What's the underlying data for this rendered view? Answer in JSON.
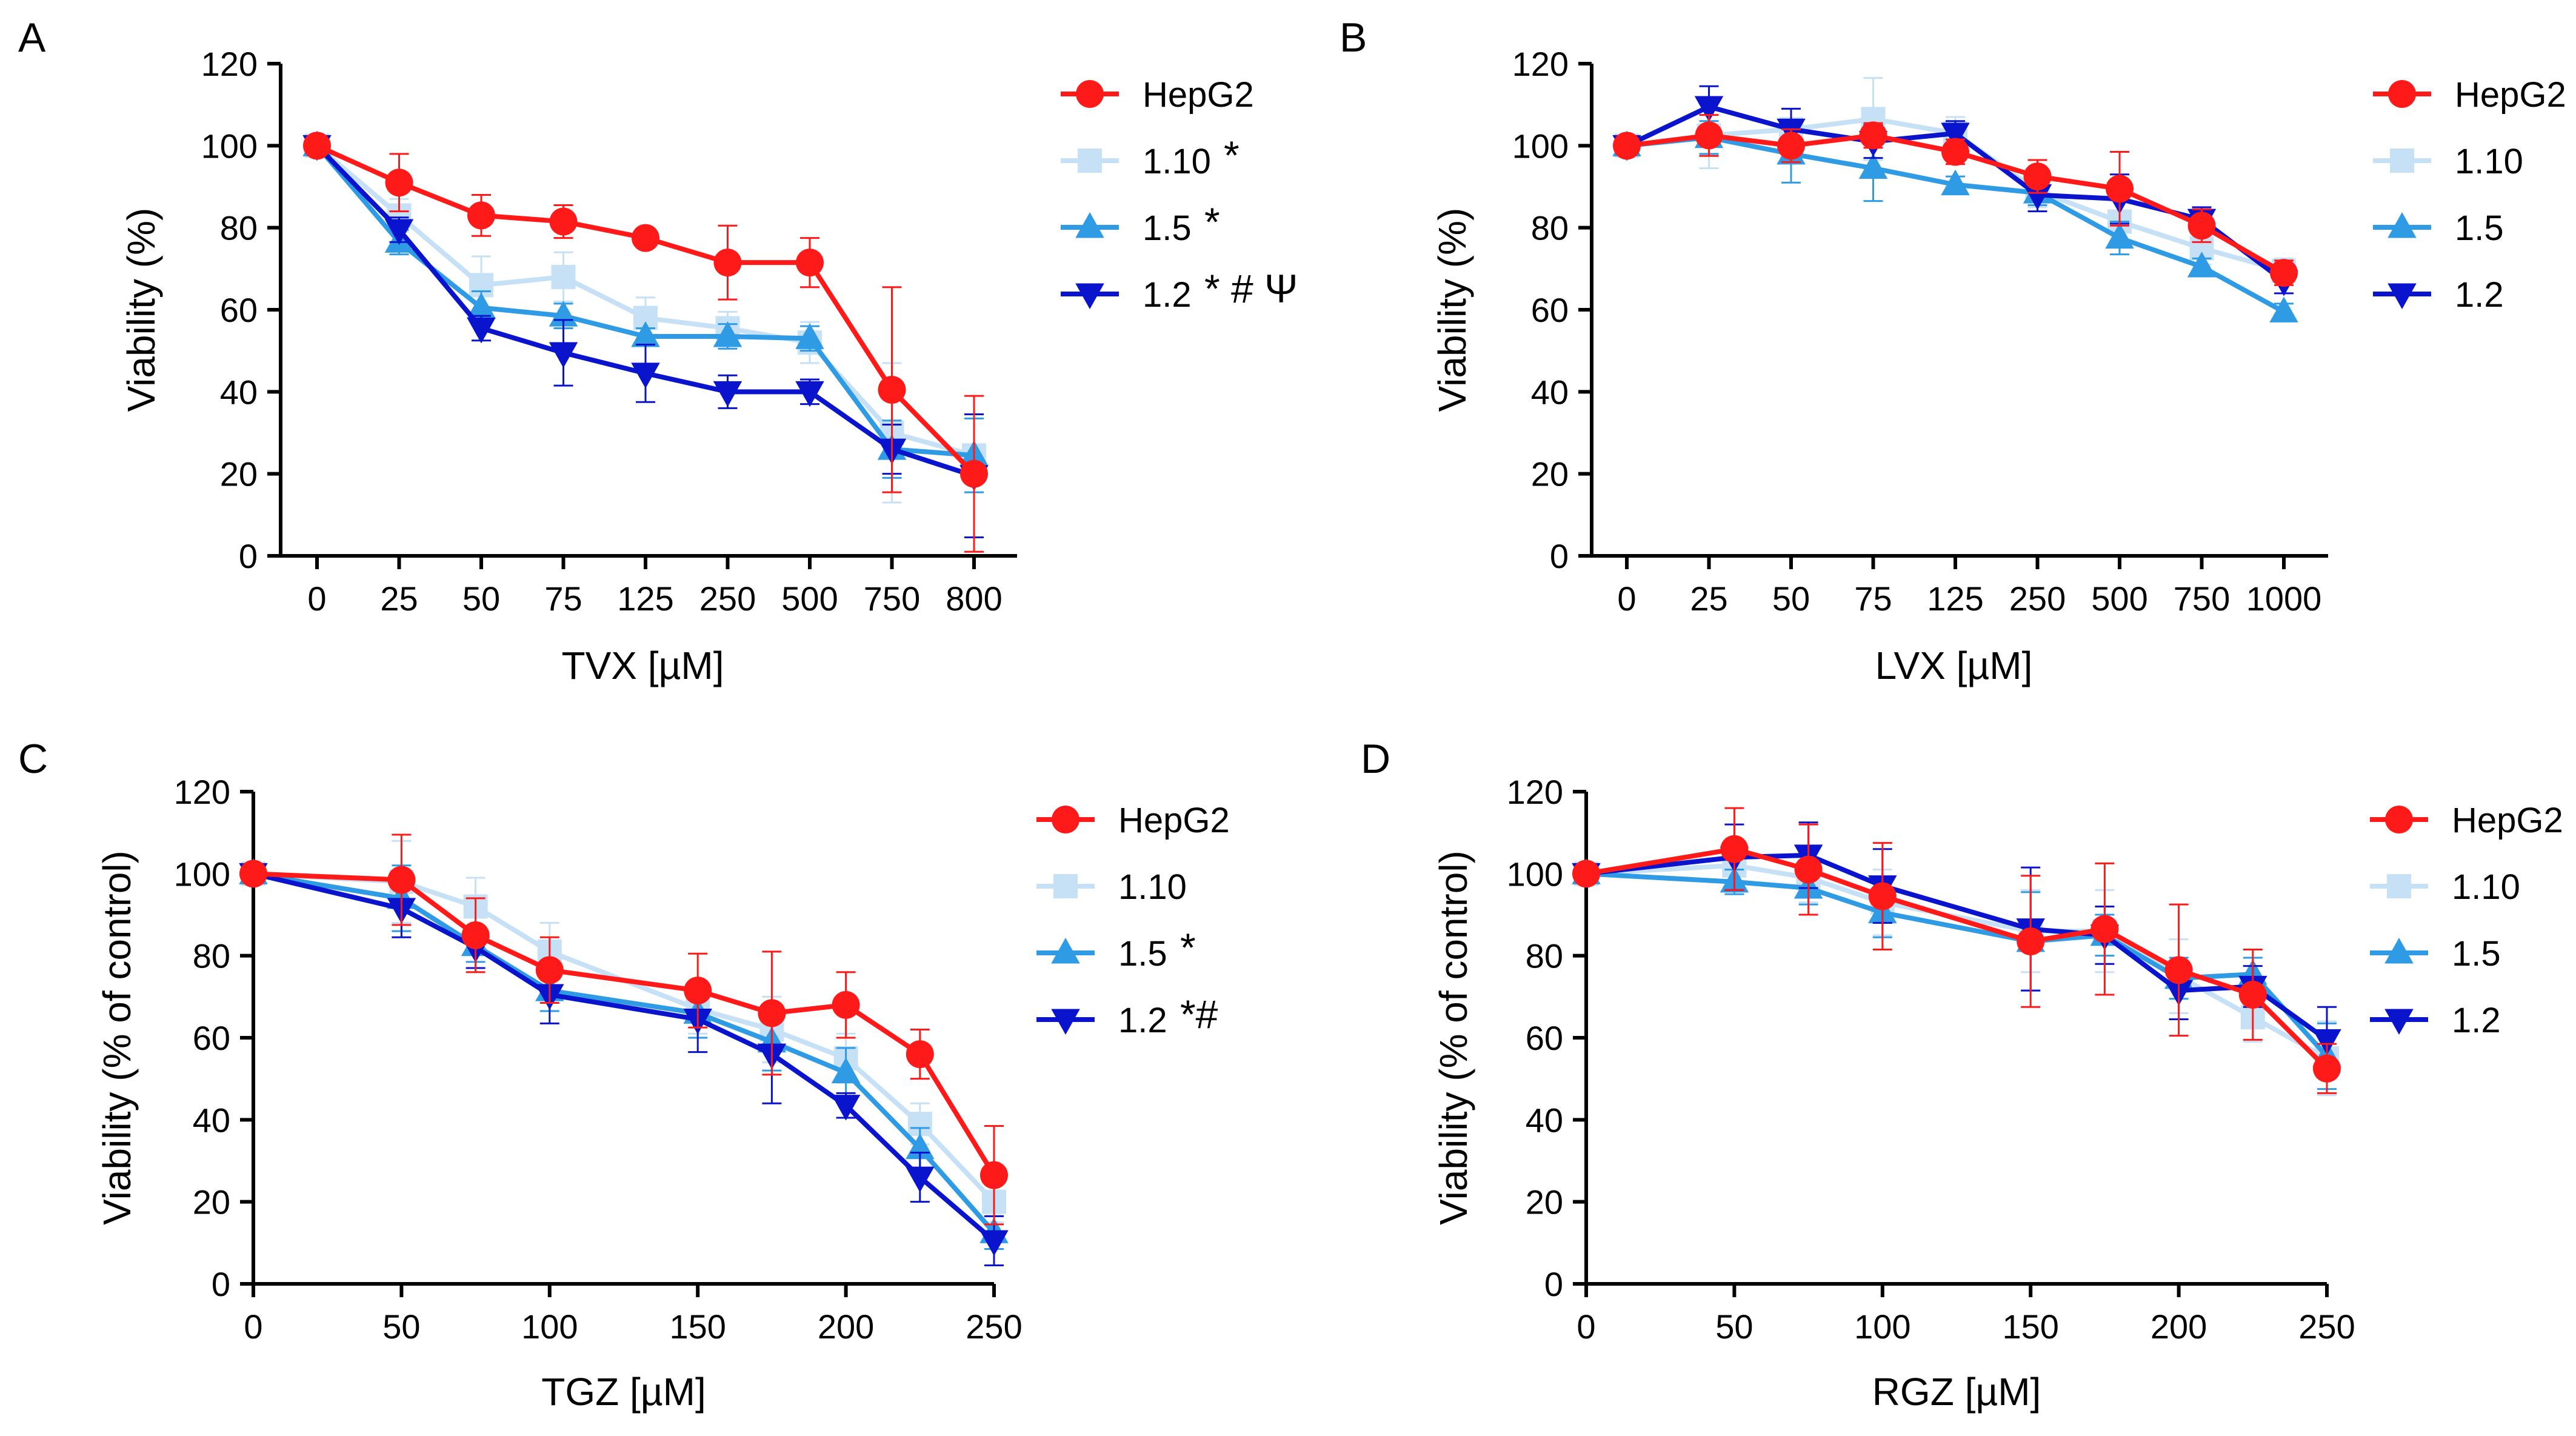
{
  "figure_title": "",
  "colors": {
    "HepG2": "#ff1a1a",
    "1.10": "#c6e0f5",
    "1.5": "#2e9be4",
    "1.2": "#0a14cc",
    "axis": "#000000"
  },
  "chart_data": [
    {
      "panel": "A",
      "type": "line",
      "title": "",
      "xlabel": "TVX [µM]",
      "ylabel": "Viability (%)",
      "x_scale": "categorical",
      "categories": [
        "0",
        "25",
        "50",
        "75",
        "125",
        "250",
        "500",
        "750",
        "800"
      ],
      "ylim": [
        0,
        120
      ],
      "yticks": [
        0,
        20,
        40,
        60,
        80,
        100,
        120
      ],
      "legend_position": "right",
      "series": [
        {
          "name": "HepG2",
          "marker": "circle",
          "legend_mark": "",
          "values": [
            100,
            91,
            83,
            81.5,
            77.5,
            71.5,
            71.5,
            40.5,
            20
          ],
          "errors": [
            2,
            7,
            5,
            4,
            2,
            9,
            6,
            25,
            19
          ]
        },
        {
          "name": "1.10",
          "marker": "square",
          "legend_mark": "*",
          "values": [
            100,
            83,
            66,
            68,
            58,
            55.5,
            52,
            30,
            24.5
          ],
          "errors": [
            2,
            4,
            7,
            6,
            5,
            4,
            5,
            17,
            9
          ]
        },
        {
          "name": "1.5",
          "marker": "triangle-up",
          "legend_mark": "*",
          "values": [
            100,
            76.5,
            60.5,
            58.5,
            53.5,
            53.5,
            53,
            26,
            24.5
          ],
          "errors": [
            2,
            3,
            4,
            3,
            2,
            3,
            3,
            7,
            9
          ]
        },
        {
          "name": "1.2",
          "marker": "triangle-down",
          "legend_mark": "* # Ψ",
          "values": [
            100,
            79.5,
            55.5,
            49.5,
            44.5,
            40,
            40,
            26,
            19.5
          ],
          "errors": [
            2,
            3,
            3,
            8,
            7,
            4,
            3,
            6,
            15
          ]
        }
      ]
    },
    {
      "panel": "B",
      "type": "line",
      "title": "",
      "xlabel": "LVX [µM]",
      "ylabel": "Viability (%)",
      "x_scale": "categorical",
      "categories": [
        "0",
        "25",
        "50",
        "75",
        "125",
        "250",
        "500",
        "750",
        "1000"
      ],
      "ylim": [
        0,
        120
      ],
      "yticks": [
        0,
        20,
        40,
        60,
        80,
        100,
        120
      ],
      "legend_position": "right",
      "series": [
        {
          "name": "HepG2",
          "marker": "circle",
          "legend_mark": "",
          "values": [
            100,
            102.5,
            100,
            102.5,
            98.5,
            92.5,
            89.5,
            80.5,
            69
          ],
          "errors": [
            2,
            5,
            4,
            3,
            3,
            4,
            9,
            4,
            3
          ]
        },
        {
          "name": "1.10",
          "marker": "square",
          "legend_mark": "",
          "values": [
            100,
            102.5,
            104,
            106.5,
            103,
            89,
            81.5,
            75,
            69.5
          ],
          "errors": [
            2,
            8,
            5,
            10,
            4,
            4,
            5,
            4,
            3
          ]
        },
        {
          "name": "1.5",
          "marker": "triangle-up",
          "legend_mark": "",
          "values": [
            100,
            102,
            98,
            94.5,
            90.5,
            88.5,
            77.5,
            70.5,
            59.5
          ],
          "errors": [
            2,
            4,
            7,
            8,
            2,
            3,
            4,
            2,
            2
          ]
        },
        {
          "name": "1.2",
          "marker": "triangle-down",
          "legend_mark": "",
          "values": [
            100,
            109.5,
            104,
            101,
            103,
            88,
            87,
            82,
            67
          ],
          "errors": [
            2,
            5,
            5,
            4,
            3,
            4,
            6,
            3,
            3
          ]
        }
      ]
    },
    {
      "panel": "C",
      "type": "line",
      "title": "",
      "xlabel": "TGZ [µM]",
      "ylabel": "Viability (% of control)",
      "x_scale": "linear",
      "xlim": [
        0,
        250
      ],
      "xticks": [
        0,
        50,
        100,
        150,
        200,
        250
      ],
      "ylim": [
        0,
        120
      ],
      "yticks": [
        0,
        20,
        40,
        60,
        80,
        100,
        120
      ],
      "legend_position": "right",
      "series": [
        {
          "name": "HepG2",
          "marker": "circle",
          "legend_mark": "",
          "x": [
            0,
            50,
            75,
            100,
            150,
            175,
            200,
            225,
            250
          ],
          "values": [
            100,
            98.5,
            85,
            76.5,
            71.5,
            66,
            68,
            56,
            26.5
          ],
          "errors": [
            2,
            11,
            9,
            8,
            9,
            15,
            8,
            6,
            12
          ]
        },
        {
          "name": "1.10",
          "marker": "square",
          "legend_mark": "",
          "x": [
            0,
            50,
            75,
            100,
            150,
            175,
            200,
            225,
            250
          ],
          "values": [
            100,
            98,
            92,
            81,
            67,
            62,
            55,
            39,
            20
          ],
          "errors": [
            2,
            10,
            7,
            7,
            6,
            8,
            6,
            5,
            5
          ]
        },
        {
          "name": "1.5",
          "marker": "triangle-up",
          "legend_mark": "*",
          "x": [
            0,
            50,
            75,
            100,
            150,
            175,
            200,
            225,
            250
          ],
          "values": [
            100,
            94,
            82.5,
            71.5,
            66,
            59,
            51.5,
            33,
            12.5
          ],
          "errors": [
            2,
            8,
            4,
            5,
            6,
            7,
            6,
            5,
            4
          ]
        },
        {
          "name": "1.2",
          "marker": "triangle-down",
          "legend_mark": "*#",
          "x": [
            0,
            50,
            75,
            100,
            150,
            175,
            200,
            225,
            250
          ],
          "values": [
            100,
            91.5,
            82,
            70.5,
            64.5,
            56,
            43.5,
            26,
            10.5
          ],
          "errors": [
            2,
            7,
            5,
            7,
            8,
            12,
            3,
            6,
            6
          ]
        }
      ]
    },
    {
      "panel": "D",
      "type": "line",
      "title": "",
      "xlabel": "RGZ [µM]",
      "ylabel": "Viability (% of control)",
      "x_scale": "linear",
      "xlim": [
        0,
        250
      ],
      "xticks": [
        0,
        50,
        100,
        150,
        200,
        250
      ],
      "ylim": [
        0,
        120
      ],
      "yticks": [
        0,
        20,
        40,
        60,
        80,
        100,
        120
      ],
      "legend_position": "right",
      "series": [
        {
          "name": "HepG2",
          "marker": "circle",
          "legend_mark": "",
          "x": [
            0,
            50,
            75,
            100,
            150,
            175,
            200,
            225,
            250
          ],
          "values": [
            100,
            106,
            101,
            94.5,
            83.5,
            86.5,
            76.5,
            70.5,
            52.5
          ],
          "errors": [
            2,
            10,
            11,
            13,
            16,
            16,
            16,
            11,
            6
          ]
        },
        {
          "name": "1.10",
          "marker": "square",
          "legend_mark": "",
          "x": [
            0,
            50,
            75,
            100,
            150,
            175,
            200,
            225,
            250
          ],
          "values": [
            100,
            102,
            99,
            93,
            86,
            86,
            75,
            65,
            55
          ],
          "errors": [
            2,
            6,
            6,
            8,
            10,
            10,
            9,
            6,
            9
          ]
        },
        {
          "name": "1.5",
          "marker": "triangle-up",
          "legend_mark": "",
          "x": [
            0,
            50,
            75,
            100,
            150,
            175,
            200,
            225,
            250
          ],
          "values": [
            100,
            98,
            96.5,
            90.5,
            83.5,
            85,
            74.5,
            75.5,
            55.5
          ],
          "errors": [
            2,
            3,
            4,
            6,
            12,
            5,
            5,
            4,
            8
          ]
        },
        {
          "name": "1.2",
          "marker": "triangle-down",
          "legend_mark": "",
          "x": [
            0,
            50,
            75,
            100,
            150,
            175,
            200,
            225,
            250
          ],
          "values": [
            100,
            104,
            104.5,
            97,
            86.5,
            85,
            71.5,
            72.5,
            59.5
          ],
          "errors": [
            2,
            8,
            8,
            9,
            15,
            7,
            7,
            5,
            8
          ]
        }
      ]
    }
  ]
}
